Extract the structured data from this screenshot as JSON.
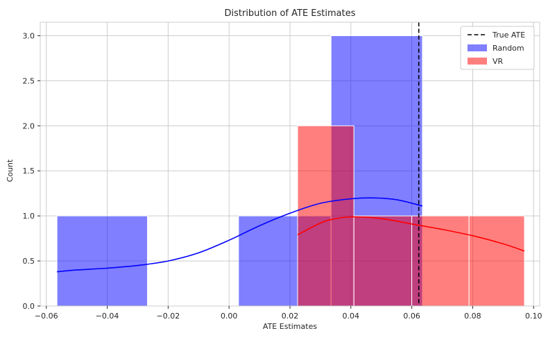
{
  "chart_data": {
    "type": "histogram",
    "title": "Distribution of ATE Estimates",
    "xlabel": "ATE Estimates",
    "ylabel": "Count",
    "xlim": [
      -0.062,
      0.102
    ],
    "ylim": [
      0,
      3.15
    ],
    "xticks": [
      -0.06,
      -0.04,
      -0.02,
      0.0,
      0.02,
      0.04,
      0.06,
      0.08,
      0.1
    ],
    "xtick_labels": [
      "−0.06",
      "−0.04",
      "−0.02",
      "0.00",
      "0.02",
      "0.04",
      "0.06",
      "0.08",
      "0.10"
    ],
    "yticks": [
      0.0,
      0.5,
      1.0,
      1.5,
      2.0,
      2.5,
      3.0
    ],
    "ytick_labels": [
      "0.0",
      "0.5",
      "1.0",
      "1.5",
      "2.0",
      "2.5",
      "3.0"
    ],
    "grid": true,
    "legend_position": "top-right",
    "true_ate": {
      "label": "True ATE",
      "x": 0.0623,
      "color": "#000000"
    },
    "series": [
      {
        "name": "Random",
        "color": "#0000ff",
        "bins": [
          {
            "x0": -0.0565,
            "x1": -0.0268,
            "count": 1
          },
          {
            "x0": -0.0268,
            "x1": 0.0031,
            "count": 0
          },
          {
            "x0": 0.0031,
            "x1": 0.0335,
            "count": 1
          },
          {
            "x0": 0.0335,
            "x1": 0.0635,
            "count": 3
          }
        ],
        "kde": [
          {
            "x": -0.0565,
            "y": 0.38
          },
          {
            "x": -0.05,
            "y": 0.4
          },
          {
            "x": -0.04,
            "y": 0.42
          },
          {
            "x": -0.03,
            "y": 0.45
          },
          {
            "x": -0.02,
            "y": 0.5
          },
          {
            "x": -0.01,
            "y": 0.59
          },
          {
            "x": 0.0,
            "y": 0.73
          },
          {
            "x": 0.01,
            "y": 0.89
          },
          {
            "x": 0.02,
            "y": 1.03
          },
          {
            "x": 0.03,
            "y": 1.14
          },
          {
            "x": 0.04,
            "y": 1.19
          },
          {
            "x": 0.047,
            "y": 1.2
          },
          {
            "x": 0.055,
            "y": 1.18
          },
          {
            "x": 0.0635,
            "y": 1.11
          }
        ]
      },
      {
        "name": "VR",
        "color": "#ff0000",
        "bins": [
          {
            "x0": 0.0225,
            "x1": 0.041,
            "count": 2
          },
          {
            "x0": 0.041,
            "x1": 0.06,
            "count": 1
          },
          {
            "x0": 0.06,
            "x1": 0.0788,
            "count": 1
          },
          {
            "x0": 0.0788,
            "x1": 0.097,
            "count": 1
          }
        ],
        "kde": [
          {
            "x": 0.0225,
            "y": 0.79
          },
          {
            "x": 0.03,
            "y": 0.92
          },
          {
            "x": 0.035,
            "y": 0.97
          },
          {
            "x": 0.041,
            "y": 0.99
          },
          {
            "x": 0.05,
            "y": 0.97
          },
          {
            "x": 0.06,
            "y": 0.91
          },
          {
            "x": 0.07,
            "y": 0.85
          },
          {
            "x": 0.08,
            "y": 0.78
          },
          {
            "x": 0.09,
            "y": 0.69
          },
          {
            "x": 0.097,
            "y": 0.61
          }
        ]
      }
    ]
  }
}
